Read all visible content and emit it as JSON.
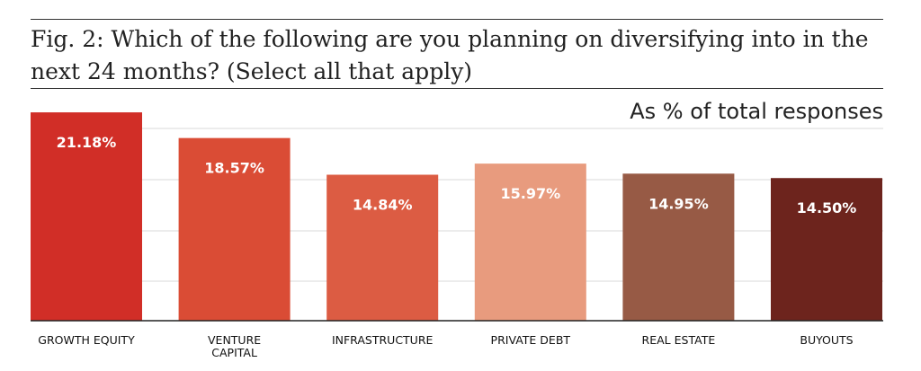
{
  "figure": {
    "title": "Fig. 2: Which of the following are you planning on diversifying into in the next 24 months? (Select all that apply)",
    "unit_note": "As % of total responses"
  },
  "chart_data": {
    "type": "bar",
    "title": "Fig. 2: Which of the following are you planning on diversifying into in the next 24 months? (Select all that apply)",
    "subtitle": "As % of total responses",
    "xlabel": "",
    "ylabel": "",
    "categories": [
      [
        "GROWTH EQUITY"
      ],
      [
        "VENTURE",
        "CAPITAL"
      ],
      [
        "INFRASTRUCTURE"
      ],
      [
        "PRIVATE DEBT"
      ],
      [
        "REAL ESTATE"
      ],
      [
        "BUYOUTS"
      ]
    ],
    "values": [
      21.18,
      18.57,
      14.84,
      15.97,
      14.95,
      14.5
    ],
    "value_labels": [
      "21.18%",
      "18.57%",
      "14.84%",
      "15.97%",
      "14.95%",
      "14.50%"
    ],
    "colors": [
      "#d12e27",
      "#da4c35",
      "#dc5c43",
      "#e89b7e",
      "#975a45",
      "#6d241d"
    ],
    "gridline_color": "#d9d9d9",
    "axis_color": "#222222",
    "ylim": [
      0,
      25
    ],
    "grid": true,
    "legend": "none"
  }
}
